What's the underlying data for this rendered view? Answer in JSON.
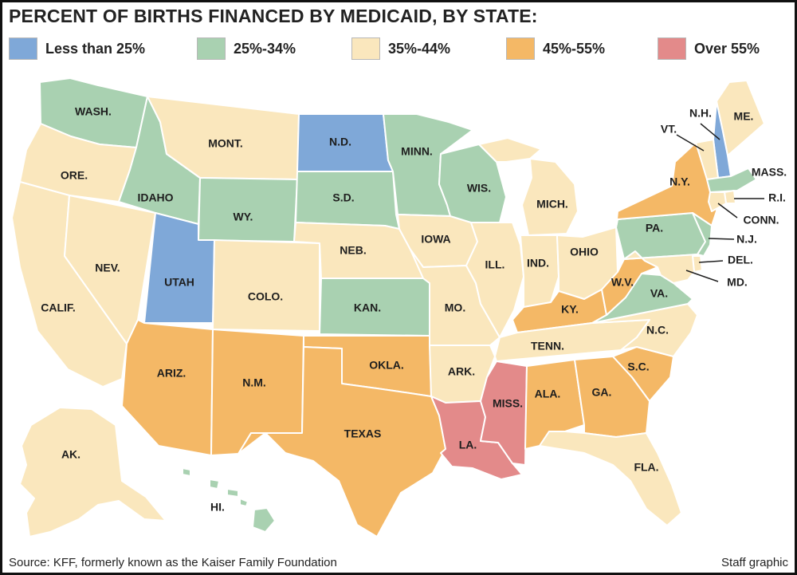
{
  "title": "PERCENT OF BIRTHS FINANCED BY MEDICAID, BY STATE:",
  "legend": [
    {
      "key": "lt25",
      "label": "Less than 25%",
      "color": "#7fa8d8"
    },
    {
      "key": "25to34",
      "label": "25%-34%",
      "color": "#a9d1b1"
    },
    {
      "key": "35to44",
      "label": "35%-44%",
      "color": "#fae7bd"
    },
    {
      "key": "45to55",
      "label": "45%-55%",
      "color": "#f4b866"
    },
    {
      "key": "over55",
      "label": "Over 55%",
      "color": "#e38a8a"
    }
  ],
  "states": [
    {
      "label": "WASH.",
      "category": "25to34"
    },
    {
      "label": "ORE.",
      "category": "35to44"
    },
    {
      "label": "CALIF.",
      "category": "35to44"
    },
    {
      "label": "NEV.",
      "category": "35to44"
    },
    {
      "label": "IDAHO",
      "category": "25to34"
    },
    {
      "label": "MONT.",
      "category": "35to44"
    },
    {
      "label": "WY.",
      "category": "25to34"
    },
    {
      "label": "UTAH",
      "category": "lt25"
    },
    {
      "label": "COLO.",
      "category": "35to44"
    },
    {
      "label": "ARIZ.",
      "category": "45to55"
    },
    {
      "label": "N.M.",
      "category": "45to55"
    },
    {
      "label": "N.D.",
      "category": "lt25"
    },
    {
      "label": "S.D.",
      "category": "25to34"
    },
    {
      "label": "NEB.",
      "category": "35to44"
    },
    {
      "label": "KAN.",
      "category": "25to34"
    },
    {
      "label": "OKLA.",
      "category": "45to55"
    },
    {
      "label": "TEXAS",
      "category": "45to55"
    },
    {
      "label": "MINN.",
      "category": "25to34"
    },
    {
      "label": "IOWA",
      "category": "35to44"
    },
    {
      "label": "MO.",
      "category": "35to44"
    },
    {
      "label": "ARK.",
      "category": "35to44"
    },
    {
      "label": "LA.",
      "category": "over55"
    },
    {
      "label": "WIS.",
      "category": "25to34"
    },
    {
      "label": "ILL.",
      "category": "35to44"
    },
    {
      "label": "MISS.",
      "category": "over55"
    },
    {
      "label": "MICH.",
      "category": "35to44"
    },
    {
      "label": "IND.",
      "category": "35to44"
    },
    {
      "label": "OHIO",
      "category": "35to44"
    },
    {
      "label": "KY.",
      "category": "45to55"
    },
    {
      "label": "TENN.",
      "category": "35to44"
    },
    {
      "label": "ALA.",
      "category": "45to55"
    },
    {
      "label": "GA.",
      "category": "45to55"
    },
    {
      "label": "FLA.",
      "category": "35to44"
    },
    {
      "label": "S.C.",
      "category": "45to55"
    },
    {
      "label": "N.C.",
      "category": "35to44"
    },
    {
      "label": "VA.",
      "category": "25to34"
    },
    {
      "label": "W.V.",
      "category": "45to55"
    },
    {
      "label": "PA.",
      "category": "25to34"
    },
    {
      "label": "N.Y.",
      "category": "45to55"
    },
    {
      "label": "ME.",
      "category": "35to44"
    },
    {
      "label": "N.H.",
      "category": "lt25"
    },
    {
      "label": "VT.",
      "category": "35to44"
    },
    {
      "label": "MASS.",
      "category": "25to34"
    },
    {
      "label": "R.I.",
      "category": "35to44"
    },
    {
      "label": "CONN.",
      "category": "35to44"
    },
    {
      "label": "N.J.",
      "category": "25to34"
    },
    {
      "label": "DEL.",
      "category": "35to44"
    },
    {
      "label": "MD.",
      "category": "35to44"
    },
    {
      "label": "AK.",
      "category": "35to44"
    },
    {
      "label": "HI.",
      "category": "25to34"
    }
  ],
  "source": "Source: KFF, formerly known as the Kaiser Family Foundation",
  "credit": "Staff graphic"
}
